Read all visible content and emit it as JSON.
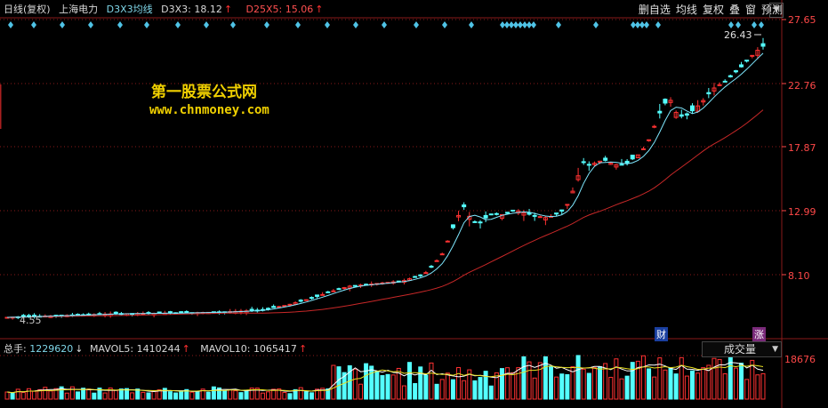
{
  "header": {
    "period": "日线(复权)",
    "stock": "上海电力",
    "indicator_name": "D3X3均线",
    "d3x3_label": "D3X3:",
    "d3x3_value": "18.12",
    "d25x5_label": "D25X5:",
    "d25x5_value": "15.06",
    "up_arrow": "↑"
  },
  "toolbar": {
    "items": [
      "删自选",
      "均线",
      "复权",
      "叠",
      "窗",
      "预测"
    ],
    "dropdown_glyph": "▼"
  },
  "watermark": {
    "line1": "第一股票公式网",
    "line2": "www.chnmoney.com"
  },
  "price_axis": {
    "labels": [
      "27.65",
      "22.76",
      "17.87",
      "12.99",
      "8.10"
    ]
  },
  "annotations": {
    "peak": "26.43",
    "low": "4.55",
    "event_cai": "财",
    "event_zhang": "涨"
  },
  "volume": {
    "total_label": "总手:",
    "total_value": "1229620",
    "total_arrow": "↓",
    "mavol5_label": "MAVOL5:",
    "mavol5_value": "1410244",
    "mavol10_label": "MAVOL10:",
    "mavol10_value": "1065417",
    "up_arrow": "↑",
    "selector_label": "成交量",
    "axis_max": "18676"
  },
  "colors": {
    "up": "#ff3232",
    "down": "#54ffff",
    "ma_short": "#7fe8ff",
    "ma_long": "#c82828",
    "axis": "#ff4848",
    "grid": "#8a1a1a",
    "signal": "#4fc3e6"
  },
  "chart_data": {
    "type": "candlestick",
    "y_axis_ticks": [
      27.65,
      22.76,
      17.87,
      12.99,
      8.1
    ],
    "max_price": 26.43,
    "min_price": 4.55,
    "series": [
      {
        "name": "D3X3",
        "last": 18.12
      },
      {
        "name": "D25X5",
        "last": 15.06
      }
    ],
    "volume": {
      "total": 1229620,
      "mavol5": 1410244,
      "mavol10": 1065417,
      "axis_max": 18676
    }
  }
}
